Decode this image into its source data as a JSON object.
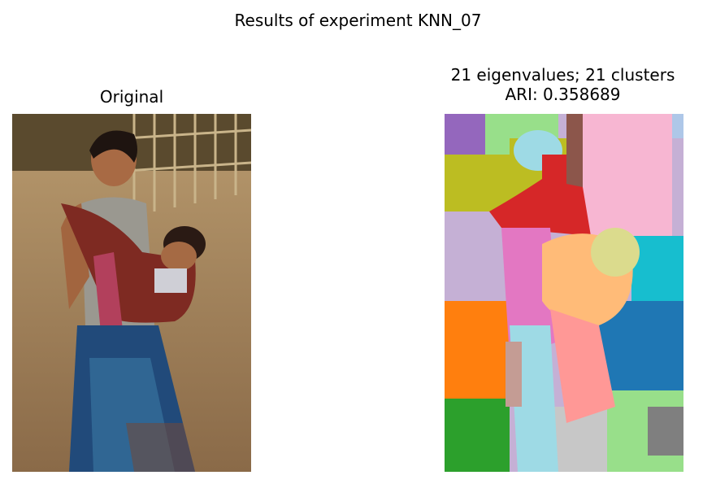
{
  "figure": {
    "suptitle": "Results of experiment KNN_07"
  },
  "left_panel": {
    "title": "Original",
    "image": "photo of a woman carrying a baby in a red sling outdoors"
  },
  "right_panel": {
    "title_line1": "21 eigenvalues; 21 clusters",
    "title_line2": "ARI: 0.358689",
    "image": "segmentation map with 21 colored clusters"
  }
}
